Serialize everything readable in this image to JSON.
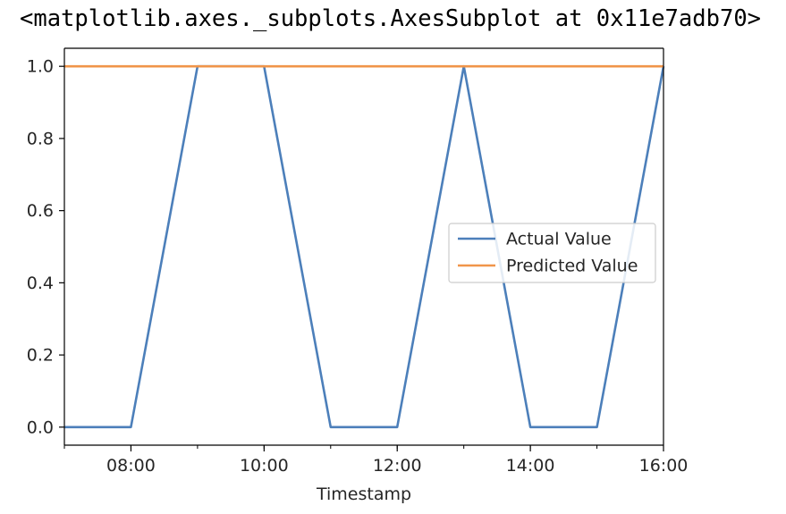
{
  "output_text": "<matplotlib.axes._subplots.AxesSubplot at 0x11e7adb70>",
  "chart_data": {
    "type": "line",
    "xlabel": "Timestamp",
    "ylabel": "",
    "title": "",
    "x": [
      "07:00",
      "08:00",
      "09:00",
      "10:00",
      "11:00",
      "12:00",
      "13:00",
      "14:00",
      "15:00",
      "16:00"
    ],
    "xlim": [
      "07:00",
      "16:00"
    ],
    "ylim": [
      -0.05,
      1.05
    ],
    "x_ticks": [
      "08:00",
      "10:00",
      "12:00",
      "14:00",
      "16:00"
    ],
    "y_ticks": [
      "0.0",
      "0.2",
      "0.4",
      "0.6",
      "0.8",
      "1.0"
    ],
    "series": [
      {
        "name": "Actual Value",
        "color": "#4c7fba",
        "values": [
          0,
          0,
          1,
          1,
          0,
          0,
          1,
          0,
          0,
          1
        ]
      },
      {
        "name": "Predicted Value",
        "color": "#f0954a",
        "values": [
          1,
          1,
          1,
          1,
          1,
          1,
          1,
          1,
          1,
          1
        ]
      }
    ],
    "grid": false,
    "legend": "center-right"
  }
}
